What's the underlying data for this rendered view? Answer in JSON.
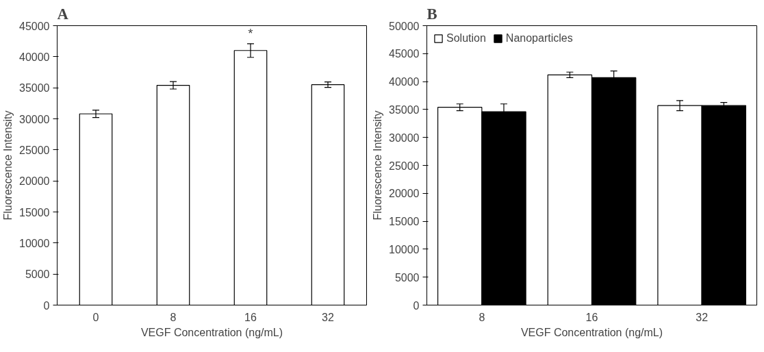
{
  "chart_data": [
    {
      "type": "bar",
      "title": "A",
      "xlabel": "VEGF Concentration (ng/mL)",
      "ylabel": "Fluorescence Intensity",
      "categories": [
        "0",
        "8",
        "16",
        "32"
      ],
      "series": [
        {
          "color": "#ffffff",
          "values": [
            30800,
            35400,
            41000,
            35500
          ],
          "errors": [
            600,
            600,
            1100,
            450
          ]
        }
      ],
      "ylim": [
        0,
        45000
      ],
      "yticks": [
        0,
        5000,
        10000,
        15000,
        20000,
        25000,
        30000,
        35000,
        40000,
        45000
      ],
      "grid": false,
      "legend": false,
      "annotations": [
        {
          "text": "*",
          "x": "16",
          "y": 42600
        }
      ]
    },
    {
      "type": "bar",
      "title": "B",
      "xlabel": "VEGF Concentration (ng/mL)",
      "ylabel": "Fluorescence Intensity",
      "categories": [
        "8",
        "16",
        "32"
      ],
      "series": [
        {
          "name": "Solution",
          "color": "#ffffff",
          "values": [
            35400,
            41200,
            35700
          ],
          "errors": [
            600,
            500,
            900
          ]
        },
        {
          "name": "Nanoparticles",
          "color": "#000000",
          "values": [
            34600,
            40700,
            35700
          ],
          "errors": [
            1400,
            1200,
            550
          ]
        }
      ],
      "ylim": [
        0,
        50000
      ],
      "yticks": [
        0,
        5000,
        10000,
        15000,
        20000,
        25000,
        30000,
        35000,
        40000,
        45000,
        50000
      ],
      "grid": false,
      "legend": "top left"
    }
  ]
}
